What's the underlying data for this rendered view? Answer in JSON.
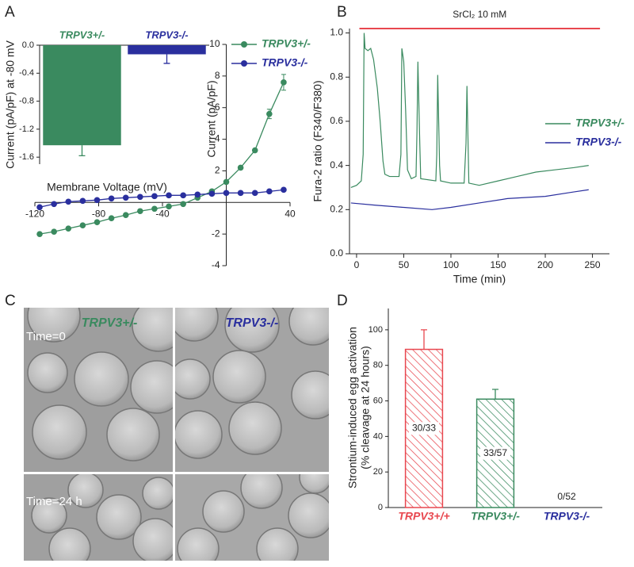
{
  "panel_labels": [
    "A",
    "B",
    "C",
    "D"
  ],
  "chart_data": [
    {
      "type": "line",
      "axes_at_origin": true,
      "markers": true,
      "legend": "upper right",
      "xlabel": "Membrane Voltage (mV)",
      "ylabel": "Current (pA/pF)",
      "x": [
        -117,
        -108,
        -99,
        -90,
        -81,
        -72,
        -63,
        -54,
        -45,
        -36,
        -27,
        -18,
        -9,
        0,
        9,
        18,
        27,
        36
      ],
      "xlim": [
        -120,
        40
      ],
      "xticks": [
        -120,
        -80,
        -40,
        40
      ],
      "ylim": [
        -4,
        10
      ],
      "yticks": [
        -4,
        -2,
        2,
        4,
        6,
        8,
        10
      ],
      "series": [
        {
          "name": "TRPV3+/-",
          "color": "#3a8a5f",
          "values": [
            -2.0,
            -1.85,
            -1.65,
            -1.45,
            -1.25,
            -1.0,
            -0.8,
            -0.55,
            -0.4,
            -0.25,
            -0.1,
            0.3,
            0.7,
            1.3,
            2.2,
            3.3,
            5.6,
            7.6
          ],
          "errors": [
            null,
            null,
            null,
            null,
            null,
            null,
            null,
            null,
            null,
            null,
            null,
            null,
            null,
            null,
            null,
            null,
            0.3,
            0.5
          ]
        },
        {
          "name": "TRPV3-/-",
          "color": "#2a2f9e",
          "values": [
            -0.3,
            -0.1,
            0.05,
            0.1,
            0.15,
            0.25,
            0.3,
            0.35,
            0.4,
            0.45,
            0.45,
            0.5,
            0.55,
            0.6,
            0.6,
            0.6,
            0.7,
            0.8
          ]
        }
      ]
    },
    {
      "type": "bar",
      "category_axis": "top",
      "ylabel": "Current (pA/pF) at -80 mV",
      "categories": [
        "TRPV3+/-",
        "TRPV3-/-"
      ],
      "values": [
        -1.43,
        -0.13
      ],
      "errors": [
        0.15,
        0.13
      ],
      "colors": [
        "#3a8a5f",
        "#2a2f9e"
      ],
      "ylim": [
        -1.7,
        0
      ],
      "yticks": [
        {
          "value": 0,
          "label": "0.0"
        },
        -0.4,
        -0.8,
        -1.2,
        -1.6
      ]
    },
    {
      "type": "line",
      "xlabel": "Time (min)",
      "ylabel": "Fura-2 ratio (F340/F380)",
      "legend": "center right",
      "xlim": [
        -7.5,
        268
      ],
      "xticks": [
        0,
        50,
        100,
        150,
        200,
        250
      ],
      "ylim": [
        0,
        1.02
      ],
      "yticks": [
        {
          "value": 0,
          "label": "0.0"
        },
        0.2,
        0.4,
        0.6,
        0.8,
        {
          "value": 1,
          "label": "1.0"
        }
      ],
      "annotation": {
        "text": "SrCl₂ 10 mM",
        "x": [
          3,
          258
        ],
        "y": 1.02,
        "color": "#e8474f"
      },
      "series": [
        {
          "name": "TRPV3+/-",
          "color": "#3a8a5f",
          "x": [
            -6,
            0,
            5,
            7,
            8,
            9,
            12,
            15,
            18,
            22,
            25,
            28,
            30,
            35,
            45,
            47,
            48,
            50,
            52,
            54,
            58,
            63,
            64,
            65,
            67,
            68,
            84,
            85,
            86,
            88,
            89,
            100,
            114,
            116,
            117,
            119,
            130,
            150,
            170,
            190,
            210,
            230,
            246
          ],
          "values": [
            0.3,
            0.31,
            0.33,
            0.45,
            1.0,
            0.93,
            0.92,
            0.93,
            0.88,
            0.75,
            0.6,
            0.42,
            0.36,
            0.35,
            0.35,
            0.45,
            0.93,
            0.87,
            0.65,
            0.38,
            0.34,
            0.35,
            0.55,
            0.87,
            0.5,
            0.34,
            0.33,
            0.45,
            0.81,
            0.4,
            0.33,
            0.32,
            0.32,
            0.5,
            0.76,
            0.32,
            0.31,
            0.33,
            0.35,
            0.37,
            0.38,
            0.39,
            0.4
          ]
        },
        {
          "name": "TRPV3-/-",
          "color": "#2a2f9e",
          "x": [
            -6,
            20,
            50,
            80,
            100,
            130,
            160,
            200,
            230,
            246
          ],
          "values": [
            0.23,
            0.22,
            0.21,
            0.2,
            0.21,
            0.23,
            0.25,
            0.26,
            0.28,
            0.29
          ]
        }
      ]
    },
    {
      "type": "bar",
      "hatch": true,
      "ylabel": [
        "Strontium-induced egg activation",
        "(% cleavage at 24 hours)"
      ],
      "categories": [
        "TRPV3+/+",
        "TRPV3+/-",
        "TRPV3-/-"
      ],
      "values": [
        89,
        61,
        0
      ],
      "errors": [
        11,
        5.5,
        null
      ],
      "annotations": [
        "30/33",
        "33/57",
        "0/52"
      ],
      "colors": [
        "#e8474f",
        "#3a8a5f",
        "#2a2f9e"
      ],
      "ylim": [
        0,
        112
      ],
      "yticks": [
        0,
        20,
        40,
        60,
        80,
        100
      ]
    }
  ],
  "images": {
    "columns": [
      {
        "text": "TRPV3+/-",
        "color": "#3a8a5f"
      },
      {
        "text": "TRPV3-/-",
        "color": "#2a2f9e"
      }
    ],
    "rows": [
      "Time=0",
      "Time=24 h"
    ]
  }
}
